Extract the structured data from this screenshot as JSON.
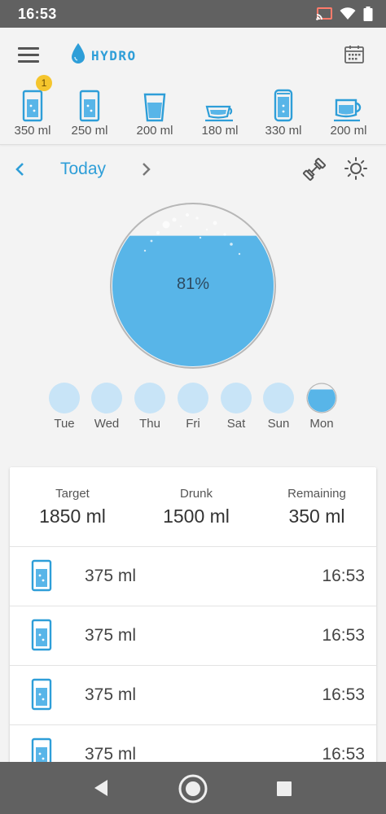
{
  "status_bar": {
    "time": "16:53",
    "icons": [
      "cast-icon",
      "wifi-icon",
      "battery-icon"
    ]
  },
  "app": {
    "name": "HYDRO",
    "brand_color": "#2e9ed8",
    "water_color": "#58b5e8"
  },
  "drinks": [
    {
      "label": "350 ml",
      "icon": "tall-glass-icon",
      "badge": "1"
    },
    {
      "label": "250 ml",
      "icon": "glass-icon"
    },
    {
      "label": "200 ml",
      "icon": "cup-icon"
    },
    {
      "label": "180 ml",
      "icon": "teacup-icon"
    },
    {
      "label": "330 ml",
      "icon": "can-icon"
    },
    {
      "label": "200 ml",
      "icon": "mug-icon"
    }
  ],
  "day_nav": {
    "label": "Today"
  },
  "progress": {
    "text": "81%",
    "fraction": 0.81
  },
  "week": [
    {
      "name": "Tue",
      "fill": 0
    },
    {
      "name": "Wed",
      "fill": 0
    },
    {
      "name": "Thu",
      "fill": 0
    },
    {
      "name": "Fri",
      "fill": 0
    },
    {
      "name": "Sat",
      "fill": 0
    },
    {
      "name": "Sun",
      "fill": 0
    },
    {
      "name": "Mon",
      "fill": 0.81
    }
  ],
  "summary": {
    "target_label": "Target",
    "target_value": "1850 ml",
    "drunk_label": "Drunk",
    "drunk_value": "1500 ml",
    "remaining_label": "Remaining",
    "remaining_value": "350 ml"
  },
  "entries": [
    {
      "amount": "375 ml",
      "time": "16:53"
    },
    {
      "amount": "375 ml",
      "time": "16:53"
    },
    {
      "amount": "375 ml",
      "time": "16:53"
    },
    {
      "amount": "375 ml",
      "time": "16:53"
    }
  ]
}
